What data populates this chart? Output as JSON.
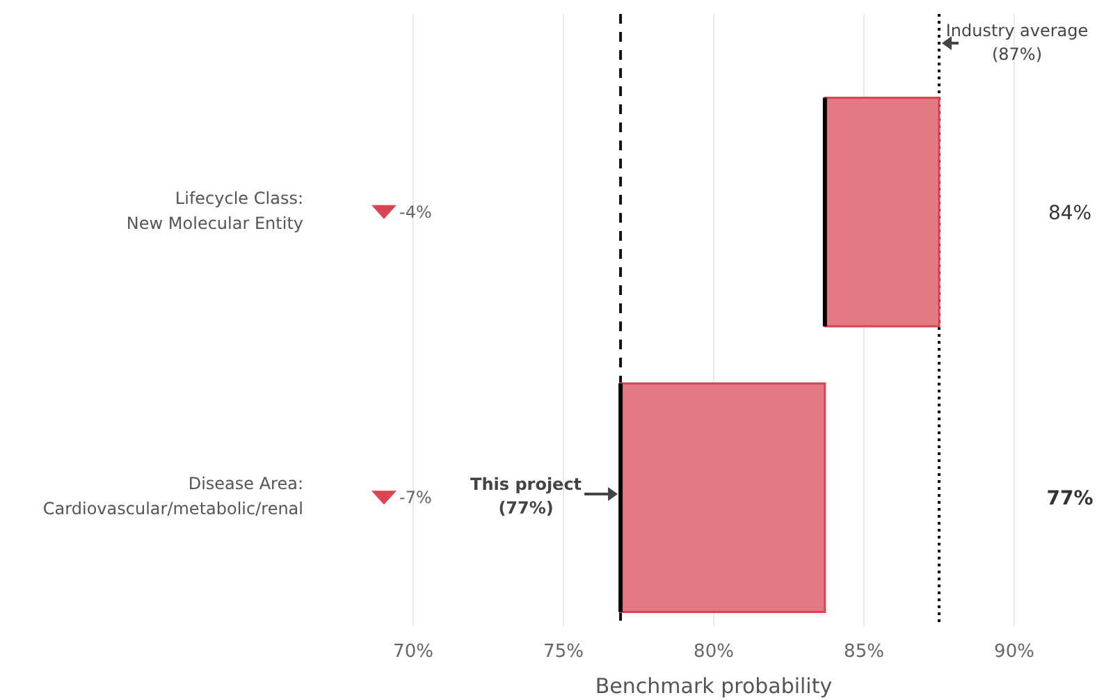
{
  "chart_data": {
    "type": "bar",
    "orientation": "horizontal",
    "xlabel": "Benchmark probability",
    "categories": [
      "Lifecycle Class:\nNew Molecular Entity",
      "Disease Area:\nCardiovascular/metabolic/renal"
    ],
    "base": [
      87.5,
      83.7
    ],
    "values": [
      -3.8,
      -6.8
    ],
    "value_labels": [
      "-4%",
      "-7%"
    ],
    "color": "#e37983",
    "xlim": [
      70,
      90
    ],
    "xticks": [
      {
        "value": 70,
        "label": "70%"
      },
      {
        "value": 75,
        "label": "75%"
      },
      {
        "value": 80,
        "label": "80%"
      },
      {
        "value": 85,
        "label": "85%"
      },
      {
        "value": 90,
        "label": "90%"
      }
    ],
    "grid": "x",
    "ref_lines": [
      {
        "axis": "x",
        "value": 76.9,
        "label": "This project\n(77%)",
        "line_style": "dashed"
      },
      {
        "axis": "x",
        "value": 87.5,
        "label": "Industry average\n(87%)",
        "line_style": "dotted"
      }
    ],
    "annotations": [
      "84%",
      "77%"
    ]
  }
}
